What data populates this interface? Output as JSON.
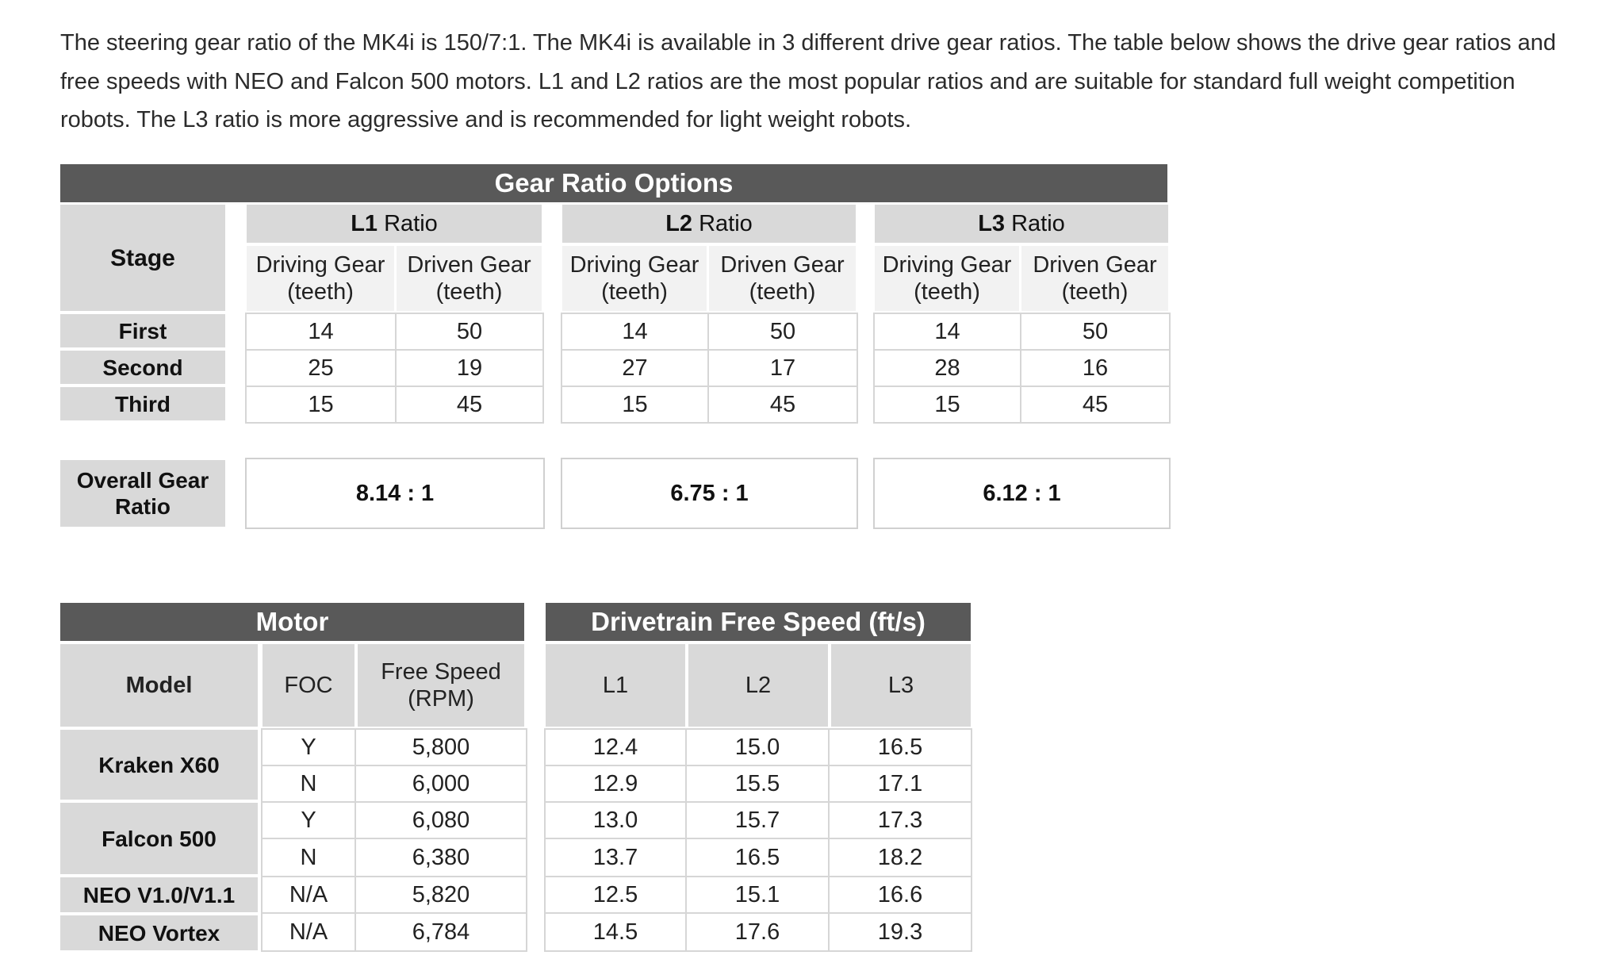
{
  "intro_text": "The steering gear ratio of the MK4i is 150/7:1. The MK4i is available in 3 different drive gear ratios. The table below shows the drive gear ratios and free speeds with NEO and Falcon 500 motors. L1 and L2 ratios are the most popular ratios and are suitable for standard full weight competition robots. The L3 ratio is more aggressive and is recommended for light weight robots.",
  "gear_table": {
    "title": "Gear Ratio Options",
    "stage_header": "Stage",
    "ratios": [
      {
        "code": "L1",
        "suffix": " Ratio"
      },
      {
        "code": "L2",
        "suffix": " Ratio"
      },
      {
        "code": "L3",
        "suffix": " Ratio"
      }
    ],
    "driving_gear_label": "Driving Gear",
    "driven_gear_label": "Driven Gear",
    "teeth_label": "(teeth)",
    "stages": [
      {
        "name": "First",
        "values": [
          "14",
          "50",
          "14",
          "50",
          "14",
          "50"
        ]
      },
      {
        "name": "Second",
        "values": [
          "25",
          "19",
          "27",
          "17",
          "28",
          "16"
        ]
      },
      {
        "name": "Third",
        "values": [
          "15",
          "45",
          "15",
          "45",
          "15",
          "45"
        ]
      }
    ],
    "overall_label_line1": "Overall Gear",
    "overall_label_line2": "Ratio",
    "overall_values": [
      "8.14 : 1",
      "6.75 : 1",
      "6.12 : 1"
    ]
  },
  "motor_table": {
    "motor_title": "Motor",
    "speed_title": "Drivetrain Free Speed (ft/s)",
    "model_header": "Model",
    "foc_header": "FOC",
    "free_speed_header_line1": "Free Speed",
    "free_speed_header_line2": "(RPM)",
    "speed_headers": [
      "L1",
      "L2",
      "L3"
    ],
    "models": [
      {
        "name": "Kraken X60"
      },
      {
        "name": "Falcon 500"
      },
      {
        "name": "NEO V1.0/V1.1"
      },
      {
        "name": "NEO Vortex"
      }
    ],
    "rows": [
      {
        "foc": "Y",
        "rpm": "5,800",
        "l1": "12.4",
        "l2": "15.0",
        "l3": "16.5"
      },
      {
        "foc": "N",
        "rpm": "6,000",
        "l1": "12.9",
        "l2": "15.5",
        "l3": "17.1"
      },
      {
        "foc": "Y",
        "rpm": "6,080",
        "l1": "13.0",
        "l2": "15.7",
        "l3": "17.3"
      },
      {
        "foc": "N",
        "rpm": "6,380",
        "l1": "13.7",
        "l2": "16.5",
        "l3": "18.2"
      },
      {
        "foc": "N/A",
        "rpm": "5,820",
        "l1": "12.5",
        "l2": "15.1",
        "l3": "16.6"
      },
      {
        "foc": "N/A",
        "rpm": "6,784",
        "l1": "14.5",
        "l2": "17.6",
        "l3": "19.3"
      }
    ]
  }
}
